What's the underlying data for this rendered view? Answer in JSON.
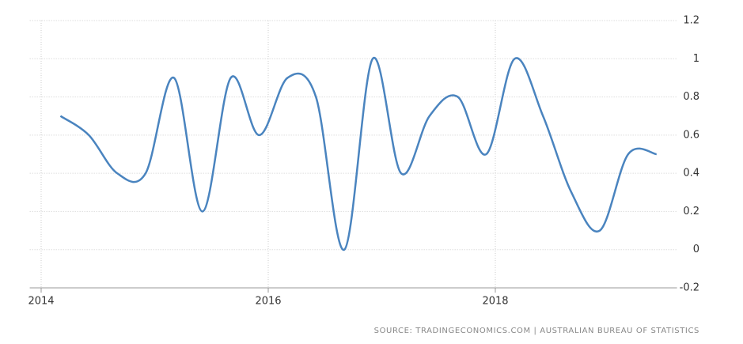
{
  "chart_data": {
    "type": "line",
    "x": [
      2014.17,
      2014.42,
      2014.67,
      2014.92,
      2015.17,
      2015.42,
      2015.67,
      2015.92,
      2016.17,
      2016.42,
      2016.67,
      2016.92,
      2017.17,
      2017.42,
      2017.67,
      2017.92,
      2018.17,
      2018.42,
      2018.67,
      2018.92,
      2019.17,
      2019.42
    ],
    "series": [
      {
        "color": "#4a84bf",
        "values": [
          0.7,
          0.6,
          0.4,
          0.4,
          0.9,
          0.2,
          0.9,
          0.6,
          0.9,
          0.8,
          0.0,
          1.0,
          0.4,
          0.7,
          0.8,
          0.5,
          1.0,
          0.7,
          0.3,
          0.1,
          0.5,
          0.5
        ]
      }
    ],
    "xlim": [
      2013.9,
      2019.6
    ],
    "xticks": [
      2014,
      2016,
      2018
    ],
    "ylim": [
      -0.2,
      1.2
    ],
    "yticks": [
      1.2,
      1,
      0.8,
      0.6,
      0.4,
      0.2,
      0,
      -0.2
    ],
    "grid": true,
    "source": "SOURCE: TRADINGECONOMICS.COM | AUSTRALIAN BUREAU OF STATISTICS"
  }
}
